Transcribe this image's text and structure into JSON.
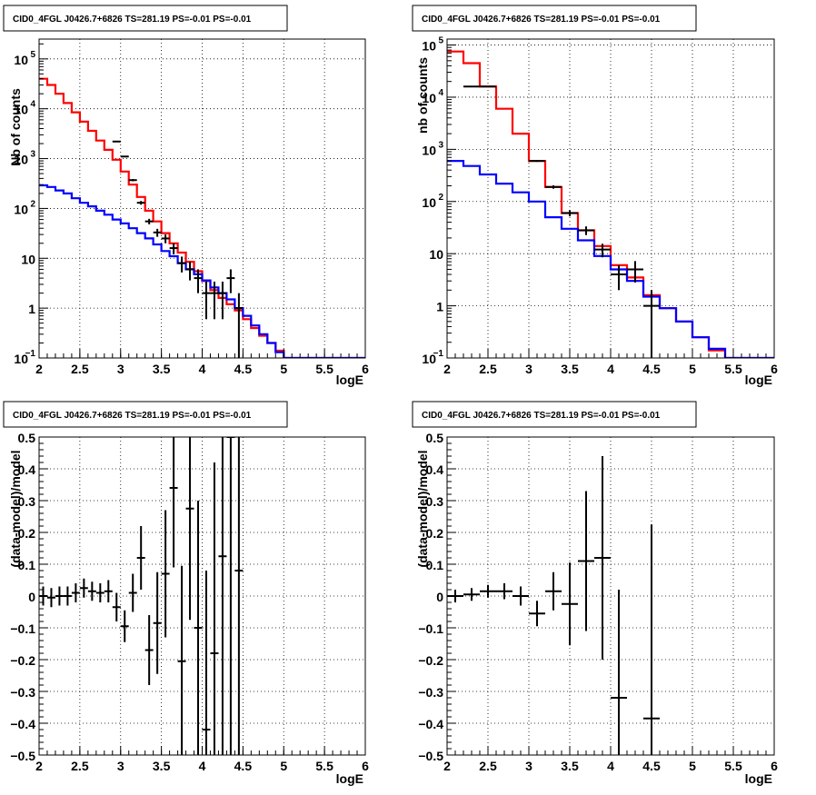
{
  "chart_data": [
    {
      "type": "line",
      "title": "CID0_4FGL J0426.7+6826 TS=281.19 PS=-0.01 PS=-0.01",
      "xlabel": "logE",
      "ylabel": "Nb of counts",
      "xlim": [
        2,
        6
      ],
      "ylim": [
        0.1,
        250000
      ],
      "yscale": "log",
      "grid": true,
      "xticks": [
        "2",
        "2.5",
        "3",
        "3.5",
        "4",
        "4.5",
        "5",
        "5.5",
        "6"
      ],
      "yticks": [
        {
          "v": 0.1,
          "label": "10",
          "exp": "−1"
        },
        {
          "v": 1,
          "label": "1",
          "exp": ""
        },
        {
          "v": 10,
          "label": "10",
          "exp": ""
        },
        {
          "v": 100,
          "label": "10",
          "exp": "2"
        },
        {
          "v": 1000,
          "label": "10",
          "exp": "3"
        },
        {
          "v": 10000,
          "label": "10",
          "exp": "4"
        },
        {
          "v": 100000,
          "label": "10",
          "exp": "5"
        }
      ],
      "binwidth": 0.1,
      "series": [
        {
          "color": "#ff0000",
          "style": "step",
          "x": [
            2.0,
            2.1,
            2.2,
            2.3,
            2.4,
            2.5,
            2.6,
            2.7,
            2.8,
            2.9,
            3.0,
            3.1,
            3.2,
            3.3,
            3.4,
            3.5,
            3.6,
            3.7,
            3.8,
            3.9,
            4.0,
            4.1,
            4.2,
            4.3,
            4.4,
            4.5,
            4.6,
            4.7,
            4.8,
            4.9,
            5.0,
            5.1,
            5.2,
            5.3,
            5.4,
            5.5,
            5.6,
            5.7,
            5.8,
            5.9
          ],
          "y": [
            40000,
            30000,
            20000,
            13000,
            8500,
            5500,
            3600,
            2300,
            1500,
            950,
            550,
            300,
            170,
            90,
            55,
            32,
            20,
            13,
            8.5,
            5.5,
            3.5,
            2.3,
            1.6,
            1.2,
            0.9,
            0.6,
            0.4,
            0.28,
            0.2,
            0.14,
            0.1,
            0.1,
            0.1,
            0.1,
            0.1,
            0.1,
            0.1,
            0.1,
            0.1,
            0.1
          ]
        },
        {
          "color": "#0000ff",
          "style": "step",
          "x": [
            2.0,
            2.1,
            2.2,
            2.3,
            2.4,
            2.5,
            2.6,
            2.7,
            2.8,
            2.9,
            3.0,
            3.1,
            3.2,
            3.3,
            3.4,
            3.5,
            3.6,
            3.7,
            3.8,
            3.9,
            4.0,
            4.1,
            4.2,
            4.3,
            4.4,
            4.5,
            4.6,
            4.7,
            4.8,
            4.9,
            5.0,
            5.1,
            5.2,
            5.3,
            5.4,
            5.5,
            5.6,
            5.7,
            5.8,
            5.9
          ],
          "y": [
            290,
            270,
            230,
            200,
            160,
            130,
            110,
            90,
            75,
            60,
            50,
            40,
            32,
            25,
            19,
            14,
            11,
            8,
            6,
            4.8,
            3.6,
            2.6,
            2.0,
            1.5,
            1.0,
            0.7,
            0.45,
            0.3,
            0.2,
            0.13,
            0.1,
            0.1,
            0.1,
            0.1,
            0.1,
            0.1,
            0.1,
            0.1,
            0.1,
            0.1
          ]
        },
        {
          "color": "#000000",
          "style": "errorbar",
          "x": [
            2.95,
            3.05,
            3.15,
            3.25,
            3.35,
            3.45,
            3.55,
            3.65,
            3.75,
            3.85,
            3.95,
            4.05,
            4.15,
            4.25,
            4.35,
            4.45
          ],
          "y": [
            2200,
            1100,
            370,
            130,
            55,
            33,
            25,
            16,
            8,
            6,
            4,
            2,
            2,
            2,
            4,
            1
          ],
          "yerr": [
            47,
            33,
            19,
            11,
            7,
            6,
            5,
            4,
            2.8,
            2.4,
            2,
            1.4,
            1.4,
            1.4,
            2,
            1
          ]
        }
      ]
    },
    {
      "type": "line",
      "title": "CID0_4FGL J0426.7+6826 TS=281.19 PS=-0.01 PS=-0.01",
      "xlabel": "logE",
      "ylabel": "nb of counts",
      "xlim": [
        2,
        6
      ],
      "ylim": [
        0.1,
        130000
      ],
      "yscale": "log",
      "grid": true,
      "xticks": [
        "2",
        "2.5",
        "3",
        "3.5",
        "4",
        "4.5",
        "5",
        "5.5",
        "6"
      ],
      "yticks": [
        {
          "v": 0.1,
          "label": "10",
          "exp": "−1"
        },
        {
          "v": 1,
          "label": "1",
          "exp": ""
        },
        {
          "v": 10,
          "label": "10",
          "exp": ""
        },
        {
          "v": 100,
          "label": "10",
          "exp": "2"
        },
        {
          "v": 1000,
          "label": "10",
          "exp": "3"
        },
        {
          "v": 10000,
          "label": "10",
          "exp": "4"
        },
        {
          "v": 100000,
          "label": "10",
          "exp": "5"
        }
      ],
      "binwidth": 0.2,
      "series": [
        {
          "color": "#ff0000",
          "style": "step",
          "x": [
            2.0,
            2.2,
            2.4,
            2.6,
            2.8,
            3.0,
            3.2,
            3.4,
            3.6,
            3.8,
            4.0,
            4.2,
            4.4,
            4.6,
            4.8,
            5.0,
            5.2,
            5.4,
            5.6,
            5.8
          ],
          "y": [
            75000,
            45000,
            16000,
            6000,
            2000,
            600,
            190,
            60,
            28,
            14,
            6,
            3.5,
            1.6,
            0.9,
            0.5,
            0.25,
            0.14,
            0.1,
            0.1,
            0.1
          ]
        },
        {
          "color": "#0000ff",
          "style": "step",
          "x": [
            2.0,
            2.2,
            2.4,
            2.6,
            2.8,
            3.0,
            3.2,
            3.4,
            3.6,
            3.8,
            4.0,
            4.2,
            4.4,
            4.6,
            4.8,
            5.0,
            5.2,
            5.4,
            5.6,
            5.8
          ],
          "y": [
            600,
            480,
            330,
            220,
            150,
            100,
            50,
            30,
            18,
            9,
            5,
            3,
            1.5,
            0.9,
            0.5,
            0.25,
            0.15,
            0.1,
            0.1,
            0.1
          ]
        },
        {
          "color": "#000000",
          "style": "errorbar",
          "x": [
            2.3,
            2.5,
            3.1,
            3.3,
            3.5,
            3.7,
            3.9,
            4.1,
            4.3,
            4.5
          ],
          "y": [
            16000,
            16000,
            600,
            190,
            60,
            28,
            12,
            4,
            5,
            1
          ],
          "yerr": [
            126,
            126,
            24,
            14,
            8,
            5.3,
            3.5,
            2,
            2.2,
            1
          ]
        }
      ]
    },
    {
      "type": "scatter",
      "title": "CID0_4FGL J0426.7+6826 TS=281.19 PS=-0.01 PS=-0.01",
      "xlabel": "logE",
      "ylabel": "(data-model)/model",
      "xlim": [
        2,
        6
      ],
      "ylim": [
        -0.5,
        0.5
      ],
      "yscale": "linear",
      "grid": true,
      "xticks": [
        "2",
        "2.5",
        "3",
        "3.5",
        "4",
        "4.5",
        "5",
        "5.5",
        "6"
      ],
      "yticks": [
        {
          "v": -0.5,
          "label": "−0.5",
          "exp": ""
        },
        {
          "v": -0.4,
          "label": "−0.4",
          "exp": ""
        },
        {
          "v": -0.3,
          "label": "−0.3",
          "exp": ""
        },
        {
          "v": -0.2,
          "label": "−0.2",
          "exp": ""
        },
        {
          "v": -0.1,
          "label": "−0.1",
          "exp": ""
        },
        {
          "v": 0,
          "label": "0",
          "exp": ""
        },
        {
          "v": 0.1,
          "label": "0.1",
          "exp": ""
        },
        {
          "v": 0.2,
          "label": "0.2",
          "exp": ""
        },
        {
          "v": 0.3,
          "label": "0.3",
          "exp": ""
        },
        {
          "v": 0.4,
          "label": "0.4",
          "exp": ""
        },
        {
          "v": 0.5,
          "label": "0.5",
          "exp": ""
        }
      ],
      "binwidth": 0.1,
      "series": [
        {
          "color": "#000000",
          "style": "errorbar",
          "x": [
            2.05,
            2.15,
            2.25,
            2.35,
            2.45,
            2.55,
            2.65,
            2.75,
            2.85,
            2.95,
            3.05,
            3.15,
            3.25,
            3.35,
            3.45,
            3.55,
            3.65,
            3.75,
            3.85,
            3.95,
            4.05,
            4.15,
            4.25,
            4.35,
            4.45
          ],
          "y": [
            0.0,
            -0.005,
            0.0,
            0.0,
            0.01,
            0.025,
            0.015,
            0.01,
            0.015,
            -0.035,
            -0.095,
            0.01,
            0.12,
            -0.17,
            -0.085,
            0.07,
            0.34,
            -0.205,
            0.275,
            -0.1,
            -0.42,
            -0.18,
            0.125,
            0.5,
            0.08
          ],
          "yerr": [
            0.03,
            0.03,
            0.03,
            0.03,
            0.03,
            0.03,
            0.03,
            0.03,
            0.035,
            0.045,
            0.05,
            0.06,
            0.1,
            0.11,
            0.16,
            0.2,
            0.25,
            0.3,
            0.35,
            0.4,
            0.5,
            0.6,
            0.65,
            1.0,
            1.0
          ]
        }
      ]
    },
    {
      "type": "scatter",
      "title": "CID0_4FGL J0426.7+6826 TS=281.19 PS=-0.01 PS=-0.01",
      "xlabel": "logE",
      "ylabel": "(data-model)/model",
      "xlim": [
        2,
        6
      ],
      "ylim": [
        -0.5,
        0.5
      ],
      "yscale": "linear",
      "grid": true,
      "xticks": [
        "2",
        "2.5",
        "3",
        "3.5",
        "4",
        "4.5",
        "5",
        "5.5",
        "6"
      ],
      "yticks": [
        {
          "v": -0.5,
          "label": "−0.5",
          "exp": ""
        },
        {
          "v": -0.4,
          "label": "−0.4",
          "exp": ""
        },
        {
          "v": -0.3,
          "label": "−0.3",
          "exp": ""
        },
        {
          "v": -0.2,
          "label": "−0.2",
          "exp": ""
        },
        {
          "v": -0.1,
          "label": "−0.1",
          "exp": ""
        },
        {
          "v": 0,
          "label": "0",
          "exp": ""
        },
        {
          "v": 0.1,
          "label": "0.1",
          "exp": ""
        },
        {
          "v": 0.2,
          "label": "0.2",
          "exp": ""
        },
        {
          "v": 0.3,
          "label": "0.3",
          "exp": ""
        },
        {
          "v": 0.4,
          "label": "0.4",
          "exp": ""
        },
        {
          "v": 0.5,
          "label": "0.5",
          "exp": ""
        }
      ],
      "binwidth": 0.2,
      "series": [
        {
          "color": "#000000",
          "style": "errorbar",
          "x": [
            2.1,
            2.3,
            2.5,
            2.7,
            2.9,
            3.1,
            3.3,
            3.5,
            3.7,
            3.9,
            4.1,
            4.5
          ],
          "y": [
            0.0,
            0.005,
            0.015,
            0.015,
            0.0,
            -0.055,
            0.015,
            -0.025,
            0.11,
            0.12,
            -0.32,
            -0.385
          ],
          "yerr": [
            0.02,
            0.02,
            0.02,
            0.025,
            0.03,
            0.04,
            0.06,
            0.13,
            0.22,
            0.32,
            0.34,
            0.61
          ]
        }
      ]
    }
  ]
}
